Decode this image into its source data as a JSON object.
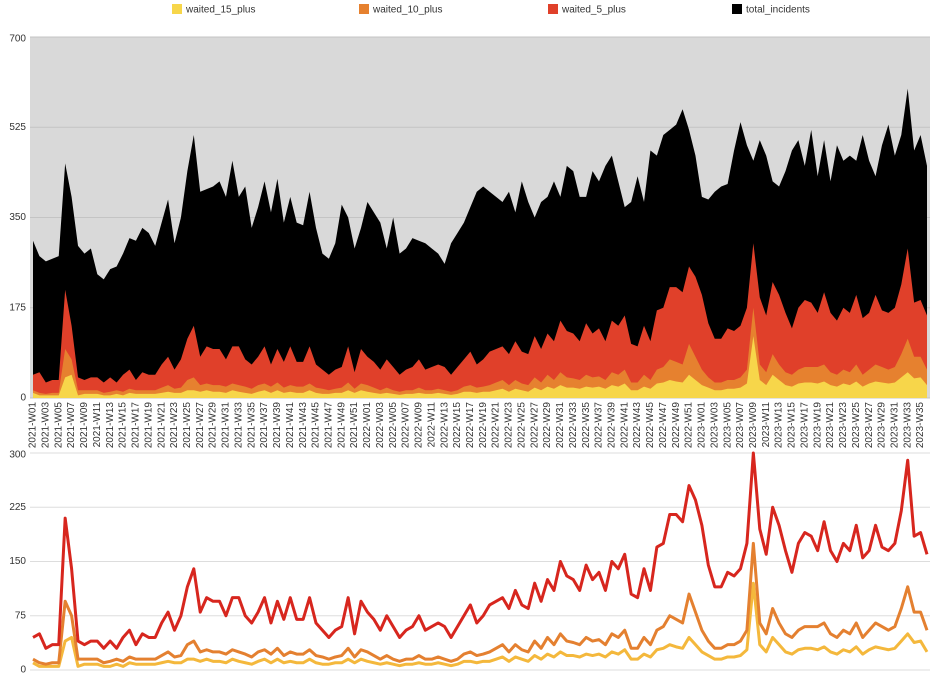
{
  "chart_data": [
    {
      "type": "area",
      "categories": [
        "2021-W01",
        null,
        "2021-W03",
        null,
        "2021-W05",
        null,
        "2021-W07",
        null,
        "2021-W09",
        null,
        "2021-W11",
        null,
        "2021-W13",
        null,
        "2021-W15",
        null,
        "2021-W17",
        null,
        "2021-W19",
        null,
        "2021-W21",
        null,
        "2021-W23",
        null,
        "2021-W25",
        null,
        "2021-W27",
        null,
        "2021-W29",
        null,
        "2021-W31",
        null,
        "2021-W33",
        null,
        "2021-W35",
        null,
        "2021-W37",
        null,
        "2021-W39",
        null,
        "2021-W41",
        null,
        "2021-W43",
        null,
        "2021-W45",
        null,
        "2021-W47",
        null,
        "2021-W49",
        null,
        "2021-W51",
        null,
        "2022-W01",
        null,
        "2022-W03",
        null,
        "2022-W05",
        null,
        "2022-W07",
        null,
        "2022-W09",
        null,
        "2022-W11",
        null,
        "2022-W13",
        null,
        "2022-W15",
        null,
        "2022-W17",
        null,
        "2022-W19",
        null,
        "2022-W21",
        null,
        "2022-W23",
        null,
        "2022-W25",
        null,
        "2022-W27",
        null,
        "2022-W29",
        null,
        "2022-W31",
        null,
        "2022-W33",
        null,
        "2022-W35",
        null,
        "2022-W37",
        null,
        "2022-W39",
        null,
        "2022-W41",
        null,
        "2022-W43",
        null,
        "2022-W45",
        null,
        "2022-W47",
        null,
        "2022-W49",
        null,
        "2022-W51",
        null,
        "2023-W01",
        null,
        "2023-W03",
        null,
        "2023-W05",
        null,
        "2023-W07",
        null,
        "2023-W09",
        null,
        "2023-W11",
        null,
        "2023-W13",
        null,
        "2023-W15",
        null,
        "2023-W17",
        null,
        "2023-W19",
        null,
        "2023-W21",
        null,
        "2023-W23",
        null,
        "2023-W25",
        null,
        "2023-W27",
        null,
        "2023-W29",
        null,
        "2023-W31",
        null,
        "2023-W33",
        null,
        "2023-W35",
        null
      ],
      "series": [
        {
          "name": "waited_15_plus",
          "color": "#f7d64a",
          "values": [
            10,
            5,
            5,
            5,
            5,
            40,
            45,
            5,
            8,
            8,
            8,
            5,
            5,
            8,
            5,
            10,
            8,
            8,
            8,
            8,
            10,
            12,
            10,
            10,
            15,
            15,
            12,
            15,
            12,
            12,
            10,
            15,
            12,
            10,
            8,
            12,
            15,
            10,
            15,
            10,
            12,
            10,
            10,
            15,
            10,
            8,
            8,
            10,
            10,
            15,
            10,
            15,
            12,
            10,
            8,
            10,
            8,
            6,
            8,
            8,
            10,
            8,
            8,
            10,
            8,
            6,
            8,
            12,
            12,
            10,
            12,
            12,
            15,
            18,
            12,
            18,
            15,
            12,
            20,
            15,
            22,
            18,
            25,
            20,
            20,
            18,
            22,
            20,
            22,
            18,
            25,
            22,
            28,
            15,
            15,
            22,
            18,
            28,
            30,
            35,
            32,
            30,
            45,
            35,
            25,
            20,
            15,
            15,
            18,
            18,
            20,
            28,
            120,
            35,
            25,
            45,
            35,
            25,
            22,
            28,
            30,
            30,
            28,
            32,
            25,
            22,
            28,
            25,
            32,
            22,
            28,
            32,
            30,
            28,
            30,
            40,
            50,
            38,
            40,
            25
          ]
        },
        {
          "name": "waited_10_plus",
          "color": "#e6812f",
          "values": [
            15,
            10,
            8,
            10,
            10,
            95,
            75,
            15,
            15,
            15,
            15,
            10,
            12,
            15,
            12,
            18,
            15,
            15,
            15,
            15,
            20,
            25,
            18,
            20,
            35,
            40,
            25,
            28,
            25,
            25,
            22,
            28,
            25,
            22,
            18,
            25,
            28,
            22,
            30,
            20,
            25,
            22,
            22,
            28,
            20,
            18,
            15,
            18,
            20,
            30,
            18,
            28,
            25,
            20,
            15,
            20,
            15,
            12,
            15,
            15,
            20,
            15,
            15,
            18,
            15,
            12,
            15,
            22,
            25,
            20,
            22,
            25,
            30,
            35,
            25,
            35,
            28,
            25,
            40,
            30,
            45,
            35,
            50,
            40,
            38,
            35,
            45,
            40,
            42,
            35,
            50,
            45,
            55,
            30,
            30,
            45,
            35,
            55,
            60,
            75,
            70,
            65,
            105,
            80,
            55,
            40,
            30,
            30,
            35,
            35,
            40,
            55,
            175,
            65,
            50,
            85,
            65,
            50,
            45,
            55,
            60,
            60,
            60,
            65,
            50,
            45,
            55,
            50,
            65,
            45,
            55,
            65,
            60,
            55,
            60,
            85,
            115,
            80,
            80,
            55
          ]
        },
        {
          "name": "waited_5_plus",
          "color": "#e0402a",
          "values": [
            45,
            50,
            30,
            35,
            35,
            210,
            140,
            40,
            35,
            40,
            40,
            30,
            40,
            30,
            45,
            55,
            35,
            50,
            45,
            45,
            65,
            80,
            55,
            75,
            115,
            140,
            80,
            100,
            95,
            95,
            75,
            100,
            100,
            75,
            65,
            80,
            100,
            65,
            95,
            70,
            100,
            70,
            70,
            100,
            65,
            55,
            45,
            55,
            60,
            100,
            50,
            95,
            80,
            70,
            55,
            75,
            60,
            45,
            55,
            60,
            75,
            55,
            60,
            65,
            60,
            45,
            60,
            75,
            90,
            65,
            75,
            90,
            95,
            100,
            85,
            110,
            90,
            85,
            120,
            95,
            125,
            110,
            150,
            130,
            125,
            110,
            145,
            125,
            135,
            110,
            150,
            140,
            160,
            105,
            100,
            140,
            110,
            170,
            175,
            215,
            215,
            205,
            255,
            235,
            200,
            145,
            115,
            115,
            135,
            130,
            140,
            175,
            300,
            195,
            160,
            225,
            200,
            165,
            135,
            175,
            190,
            185,
            165,
            205,
            165,
            150,
            175,
            165,
            200,
            155,
            165,
            200,
            170,
            165,
            175,
            220,
            290,
            185,
            190,
            160
          ]
        },
        {
          "name": "total_incidents",
          "color": "#000000",
          "values": [
            305,
            275,
            265,
            270,
            275,
            455,
            390,
            295,
            280,
            290,
            240,
            230,
            250,
            255,
            280,
            310,
            305,
            330,
            320,
            295,
            340,
            385,
            300,
            350,
            440,
            510,
            400,
            405,
            410,
            420,
            390,
            460,
            390,
            410,
            330,
            370,
            420,
            360,
            425,
            340,
            390,
            340,
            335,
            400,
            330,
            280,
            270,
            300,
            375,
            350,
            290,
            330,
            380,
            360,
            340,
            290,
            350,
            280,
            290,
            310,
            305,
            300,
            290,
            280,
            260,
            300,
            320,
            340,
            370,
            400,
            410,
            400,
            390,
            380,
            400,
            360,
            420,
            380,
            350,
            380,
            390,
            420,
            390,
            450,
            440,
            390,
            390,
            440,
            420,
            450,
            470,
            420,
            370,
            380,
            430,
            380,
            480,
            470,
            510,
            520,
            530,
            560,
            520,
            470,
            390,
            385,
            400,
            410,
            415,
            480,
            535,
            490,
            460,
            500,
            470,
            420,
            410,
            440,
            480,
            500,
            450,
            520,
            430,
            500,
            420,
            490,
            460,
            470,
            460,
            510,
            460,
            430,
            490,
            530,
            470,
            510,
            600,
            480,
            510,
            450
          ]
        }
      ],
      "ylim": [
        0,
        700
      ],
      "yticks": [
        0,
        175,
        350,
        525,
        700
      ],
      "grid": true,
      "legend": "top"
    },
    {
      "type": "line",
      "series": [
        {
          "color": "#f4b83c",
          "values": [
            10,
            5,
            5,
            5,
            5,
            40,
            45,
            5,
            8,
            8,
            8,
            5,
            5,
            8,
            5,
            10,
            8,
            8,
            8,
            8,
            10,
            12,
            10,
            10,
            15,
            15,
            12,
            15,
            12,
            12,
            10,
            15,
            12,
            10,
            8,
            12,
            15,
            10,
            15,
            10,
            12,
            10,
            10,
            15,
            10,
            8,
            8,
            10,
            10,
            15,
            10,
            15,
            12,
            10,
            8,
            10,
            8,
            6,
            8,
            8,
            10,
            8,
            8,
            10,
            8,
            6,
            8,
            12,
            12,
            10,
            12,
            12,
            15,
            18,
            12,
            18,
            15,
            12,
            20,
            15,
            22,
            18,
            25,
            20,
            20,
            18,
            22,
            20,
            22,
            18,
            25,
            22,
            28,
            15,
            15,
            22,
            18,
            28,
            30,
            35,
            32,
            30,
            45,
            35,
            25,
            20,
            15,
            15,
            18,
            18,
            20,
            28,
            120,
            35,
            25,
            45,
            35,
            25,
            22,
            28,
            30,
            30,
            28,
            32,
            25,
            22,
            28,
            25,
            32,
            22,
            28,
            32,
            30,
            28,
            30,
            40,
            50,
            38,
            40,
            25
          ]
        },
        {
          "color": "#e48030",
          "values": [
            15,
            10,
            8,
            10,
            10,
            95,
            75,
            15,
            15,
            15,
            15,
            10,
            12,
            15,
            12,
            18,
            15,
            15,
            15,
            15,
            20,
            25,
            18,
            20,
            35,
            40,
            25,
            28,
            25,
            25,
            22,
            28,
            25,
            22,
            18,
            25,
            28,
            22,
            30,
            20,
            25,
            22,
            22,
            28,
            20,
            18,
            15,
            18,
            20,
            30,
            18,
            28,
            25,
            20,
            15,
            20,
            15,
            12,
            15,
            15,
            20,
            15,
            15,
            18,
            15,
            12,
            15,
            22,
            25,
            20,
            22,
            25,
            30,
            35,
            25,
            35,
            28,
            25,
            40,
            30,
            45,
            35,
            50,
            40,
            38,
            35,
            45,
            40,
            42,
            35,
            50,
            45,
            55,
            30,
            30,
            45,
            35,
            55,
            60,
            75,
            70,
            65,
            105,
            80,
            55,
            40,
            30,
            30,
            35,
            35,
            40,
            55,
            175,
            65,
            50,
            85,
            65,
            50,
            45,
            55,
            60,
            60,
            60,
            65,
            50,
            45,
            55,
            50,
            65,
            45,
            55,
            65,
            60,
            55,
            60,
            85,
            115,
            80,
            80,
            55
          ]
        },
        {
          "color": "#d7261e",
          "values": [
            45,
            50,
            30,
            35,
            35,
            210,
            140,
            40,
            35,
            40,
            40,
            30,
            40,
            30,
            45,
            55,
            35,
            50,
            45,
            45,
            65,
            80,
            55,
            75,
            115,
            140,
            80,
            100,
            95,
            95,
            75,
            100,
            100,
            75,
            65,
            80,
            100,
            65,
            95,
            70,
            100,
            70,
            70,
            100,
            65,
            55,
            45,
            55,
            60,
            100,
            50,
            95,
            80,
            70,
            55,
            75,
            60,
            45,
            55,
            60,
            75,
            55,
            60,
            65,
            60,
            45,
            60,
            75,
            90,
            65,
            75,
            90,
            95,
            100,
            85,
            110,
            90,
            85,
            120,
            95,
            125,
            110,
            150,
            130,
            125,
            110,
            145,
            125,
            135,
            110,
            150,
            140,
            160,
            105,
            100,
            140,
            110,
            170,
            175,
            215,
            215,
            205,
            255,
            235,
            200,
            145,
            115,
            115,
            135,
            130,
            140,
            175,
            300,
            195,
            160,
            225,
            200,
            165,
            135,
            175,
            190,
            185,
            165,
            205,
            165,
            150,
            175,
            165,
            200,
            155,
            165,
            200,
            170,
            165,
            175,
            220,
            290,
            185,
            190,
            160
          ]
        }
      ],
      "ylim": [
        0,
        300
      ],
      "yticks": [
        0,
        75,
        150,
        225,
        300
      ],
      "grid": true
    }
  ]
}
